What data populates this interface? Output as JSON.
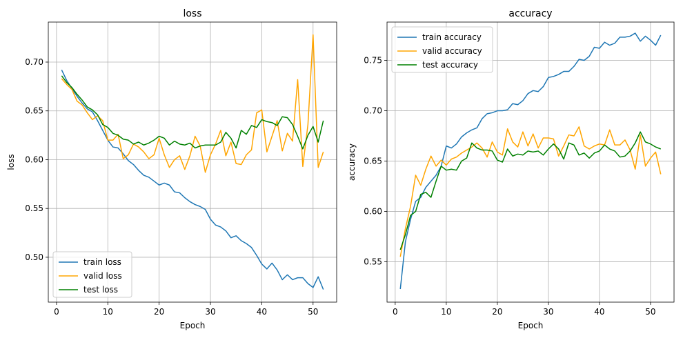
{
  "chart_data": [
    {
      "type": "line",
      "title": "loss",
      "xlabel": "Epoch",
      "ylabel": "loss",
      "xlim": [
        -1.6,
        54.6
      ],
      "ylim": [
        0.454,
        0.741
      ],
      "xticks": [
        0,
        10,
        20,
        30,
        40,
        50
      ],
      "yticks": [
        0.5,
        0.55,
        0.6,
        0.65,
        0.7
      ],
      "ytick_labels": [
        "0.50",
        "0.55",
        "0.60",
        "0.65",
        "0.70"
      ],
      "grid": true,
      "legend_position": "lower-left",
      "x": [
        1,
        2,
        3,
        4,
        5,
        6,
        7,
        8,
        9,
        10,
        11,
        12,
        13,
        14,
        15,
        16,
        17,
        18,
        19,
        20,
        21,
        22,
        23,
        24,
        25,
        26,
        27,
        28,
        29,
        30,
        31,
        32,
        33,
        34,
        35,
        36,
        37,
        38,
        39,
        40,
        41,
        42,
        43,
        44,
        45,
        46,
        47,
        48,
        49,
        50,
        51,
        52
      ],
      "series": [
        {
          "name": "train loss",
          "color": "#1f77b4",
          "values": [
            0.692,
            0.681,
            0.673,
            0.665,
            0.658,
            0.652,
            0.649,
            0.64,
            0.63,
            0.62,
            0.613,
            0.612,
            0.606,
            0.599,
            0.595,
            0.589,
            0.584,
            0.582,
            0.578,
            0.574,
            0.576,
            0.574,
            0.567,
            0.566,
            0.561,
            0.557,
            0.554,
            0.552,
            0.549,
            0.539,
            0.533,
            0.531,
            0.527,
            0.52,
            0.522,
            0.517,
            0.514,
            0.51,
            0.502,
            0.493,
            0.488,
            0.494,
            0.487,
            0.477,
            0.482,
            0.477,
            0.479,
            0.479,
            0.473,
            0.469,
            0.48,
            0.467
          ]
        },
        {
          "name": "valid loss",
          "color": "#ffa500",
          "values": [
            0.683,
            0.677,
            0.672,
            0.66,
            0.656,
            0.648,
            0.641,
            0.645,
            0.64,
            0.62,
            0.62,
            0.626,
            0.601,
            0.605,
            0.616,
            0.613,
            0.608,
            0.601,
            0.605,
            0.622,
            0.605,
            0.592,
            0.6,
            0.604,
            0.59,
            0.604,
            0.624,
            0.614,
            0.587,
            0.605,
            0.616,
            0.63,
            0.604,
            0.618,
            0.596,
            0.595,
            0.605,
            0.61,
            0.648,
            0.651,
            0.608,
            0.624,
            0.64,
            0.609,
            0.627,
            0.619,
            0.682,
            0.593,
            0.636,
            0.728,
            0.592,
            0.608
          ]
        },
        {
          "name": "test loss",
          "color": "#008000",
          "values": [
            0.686,
            0.679,
            0.674,
            0.667,
            0.661,
            0.654,
            0.651,
            0.646,
            0.636,
            0.633,
            0.627,
            0.625,
            0.621,
            0.62,
            0.616,
            0.618,
            0.615,
            0.617,
            0.62,
            0.624,
            0.622,
            0.615,
            0.619,
            0.616,
            0.615,
            0.617,
            0.612,
            0.614,
            0.615,
            0.615,
            0.615,
            0.618,
            0.628,
            0.622,
            0.612,
            0.63,
            0.626,
            0.635,
            0.633,
            0.641,
            0.639,
            0.638,
            0.635,
            0.644,
            0.643,
            0.636,
            0.624,
            0.611,
            0.625,
            0.634,
            0.618,
            0.64
          ]
        }
      ]
    },
    {
      "type": "line",
      "title": "accuracy",
      "xlabel": "Epoch",
      "ylabel": "accuracy",
      "xlim": [
        -1.6,
        54.6
      ],
      "ylim": [
        0.51,
        0.788
      ],
      "xticks": [
        0,
        10,
        20,
        30,
        40,
        50
      ],
      "yticks": [
        0.55,
        0.6,
        0.65,
        0.7,
        0.75
      ],
      "ytick_labels": [
        "0.55",
        "0.60",
        "0.65",
        "0.70",
        "0.75"
      ],
      "grid": true,
      "legend_position": "upper-left",
      "x": [
        1,
        2,
        3,
        4,
        5,
        6,
        7,
        8,
        9,
        10,
        11,
        12,
        13,
        14,
        15,
        16,
        17,
        18,
        19,
        20,
        21,
        22,
        23,
        24,
        25,
        26,
        27,
        28,
        29,
        30,
        31,
        32,
        33,
        34,
        35,
        36,
        37,
        38,
        39,
        40,
        41,
        42,
        43,
        44,
        45,
        46,
        47,
        48,
        49,
        50,
        51,
        52
      ],
      "series": [
        {
          "name": "train accuracy",
          "color": "#1f77b4",
          "values": [
            0.523,
            0.57,
            0.592,
            0.61,
            0.614,
            0.624,
            0.63,
            0.636,
            0.645,
            0.665,
            0.663,
            0.667,
            0.674,
            0.678,
            0.681,
            0.683,
            0.692,
            0.697,
            0.698,
            0.7,
            0.7,
            0.701,
            0.707,
            0.706,
            0.71,
            0.717,
            0.72,
            0.719,
            0.724,
            0.733,
            0.734,
            0.736,
            0.739,
            0.739,
            0.744,
            0.751,
            0.75,
            0.754,
            0.763,
            0.762,
            0.768,
            0.765,
            0.767,
            0.773,
            0.773,
            0.774,
            0.777,
            0.769,
            0.774,
            0.77,
            0.765,
            0.775
          ]
        },
        {
          "name": "valid accuracy",
          "color": "#ffa500",
          "values": [
            0.555,
            0.583,
            0.605,
            0.636,
            0.626,
            0.642,
            0.655,
            0.645,
            0.651,
            0.646,
            0.652,
            0.654,
            0.658,
            0.661,
            0.664,
            0.668,
            0.663,
            0.654,
            0.669,
            0.659,
            0.656,
            0.682,
            0.669,
            0.664,
            0.679,
            0.665,
            0.677,
            0.663,
            0.673,
            0.673,
            0.672,
            0.655,
            0.665,
            0.676,
            0.675,
            0.684,
            0.665,
            0.662,
            0.665,
            0.667,
            0.666,
            0.681,
            0.666,
            0.666,
            0.671,
            0.661,
            0.642,
            0.676,
            0.645,
            0.653,
            0.659,
            0.637
          ]
        },
        {
          "name": "test accuracy",
          "color": "#008000",
          "values": [
            0.562,
            0.577,
            0.596,
            0.6,
            0.617,
            0.619,
            0.614,
            0.63,
            0.645,
            0.641,
            0.642,
            0.641,
            0.65,
            0.653,
            0.668,
            0.663,
            0.661,
            0.661,
            0.66,
            0.651,
            0.649,
            0.662,
            0.655,
            0.657,
            0.656,
            0.66,
            0.659,
            0.66,
            0.656,
            0.662,
            0.667,
            0.662,
            0.652,
            0.668,
            0.666,
            0.656,
            0.658,
            0.653,
            0.658,
            0.66,
            0.666,
            0.662,
            0.66,
            0.654,
            0.655,
            0.66,
            0.668,
            0.679,
            0.669,
            0.667,
            0.664,
            0.662
          ]
        }
      ]
    }
  ]
}
